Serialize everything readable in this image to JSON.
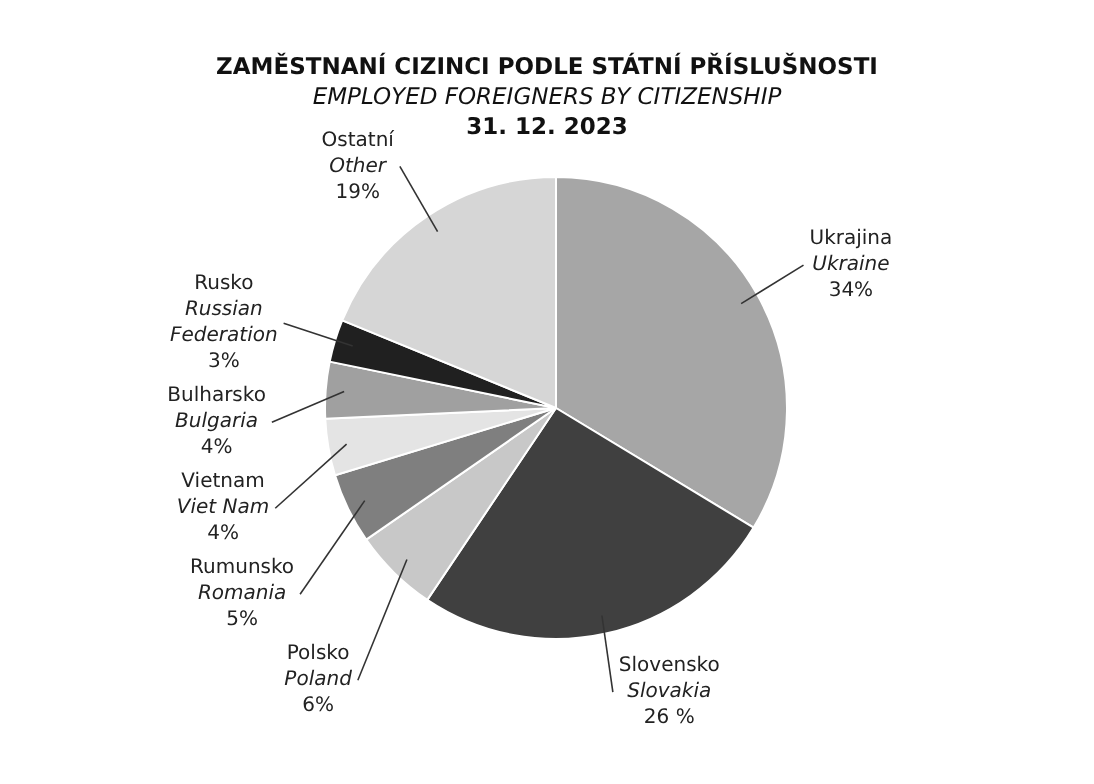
{
  "chart_data": {
    "type": "pie",
    "title": "ZAMĚSTNANÍ CIZINCI PODLE STÁTNÍ PŘÍSLUŠNOSTI",
    "subtitle": "EMPLOYED FOREIGNERS BY CITIZENSHIP",
    "annotations": [
      "31. 12. 2023"
    ],
    "categories": [
      "Ukrajina\nUkraine",
      "Slovensko\nSlovakia",
      "Polsko\nPoland",
      "Rumunsko\nRomania",
      "Vietnam\nViet Nam",
      "Bulharsko\nBulgaria",
      "Rusko\nRussian\nFederation",
      "Ostatní\nOther"
    ],
    "values": [
      34,
      26,
      6,
      5,
      4,
      4,
      3,
      19
    ],
    "value_labels": [
      "34%",
      "26 %",
      "6%",
      "5%",
      "4%",
      "4%",
      "3%",
      "19%"
    ],
    "colors": [
      "#a6a6a6",
      "#404040",
      "#c8c8c8",
      "#7f7f7f",
      "#e4e4e4",
      "#a0a0a0",
      "#202020",
      "#d6d6d6"
    ],
    "legend": false
  }
}
